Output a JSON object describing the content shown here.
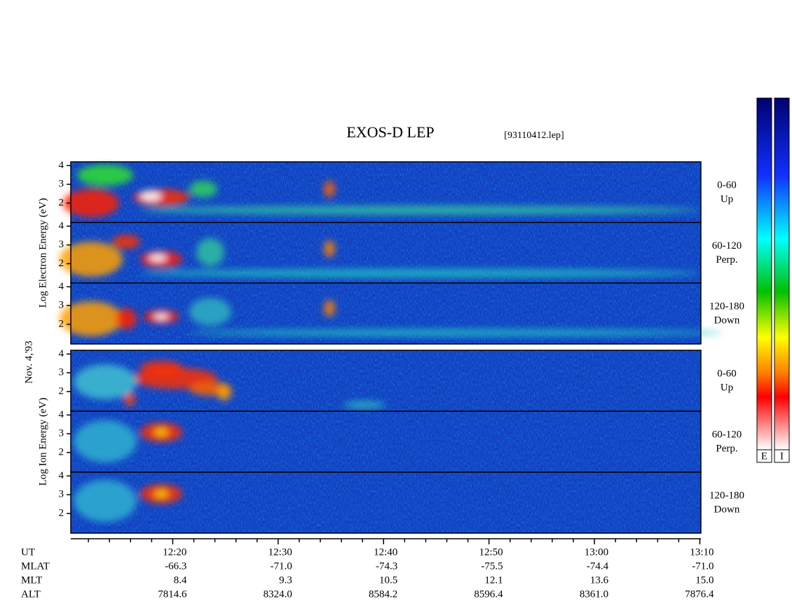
{
  "chart_data": {
    "type": "spectrogram",
    "title": "EXOS-D LEP",
    "file": "[93110412.lep]",
    "date": "Nov. 4,'93",
    "ylim": [
      0.95,
      4.2
    ],
    "yticks": [
      2,
      3,
      4
    ],
    "xlim": [
      10.33,
      70.1
    ],
    "xticks": [
      {
        "value": 20,
        "label": "12:20"
      },
      {
        "value": 30,
        "label": "12:30"
      },
      {
        "value": 40,
        "label": "12:40"
      },
      {
        "value": 50,
        "label": "12:50"
      },
      {
        "value": 60,
        "label": "13:00"
      },
      {
        "value": 70,
        "label": "13:10"
      }
    ],
    "xminor": [
      12,
      14,
      16,
      18,
      22,
      24,
      26,
      28,
      32,
      34,
      36,
      38,
      42,
      44,
      46,
      48,
      52,
      54,
      56,
      58,
      62,
      64,
      66,
      68
    ],
    "groups": [
      {
        "ylabel": "Log  Electron  Energy (eV)",
        "panels": [
          {
            "angle": "0-60",
            "direction": "Up"
          },
          {
            "angle": "60-120",
            "direction": "Perp."
          },
          {
            "angle": "120-180",
            "direction": "Down"
          }
        ]
      },
      {
        "ylabel": "Log  Ion  Energy (eV)",
        "panels": [
          {
            "angle": "0-60",
            "direction": "Up"
          },
          {
            "angle": "60-120",
            "direction": "Perp."
          },
          {
            "angle": "120-180",
            "direction": "Down"
          }
        ]
      }
    ],
    "orbit": [
      {
        "name": "UT"
      },
      {
        "name": "MLAT",
        "values": [
          "-66.3",
          "-71.0",
          "-74.3",
          "-75.5",
          "-74.4",
          "-71.0"
        ]
      },
      {
        "name": "MLT",
        "values": [
          "8.4",
          "9.3",
          "10.5",
          "12.1",
          "13.6",
          "15.0"
        ]
      },
      {
        "name": "ALT",
        "values": [
          "7814.6",
          "8324.0",
          "8584.2",
          "8596.4",
          "8361.0",
          "7876.4"
        ]
      }
    ],
    "colorbars": [
      "E",
      "I"
    ]
  }
}
